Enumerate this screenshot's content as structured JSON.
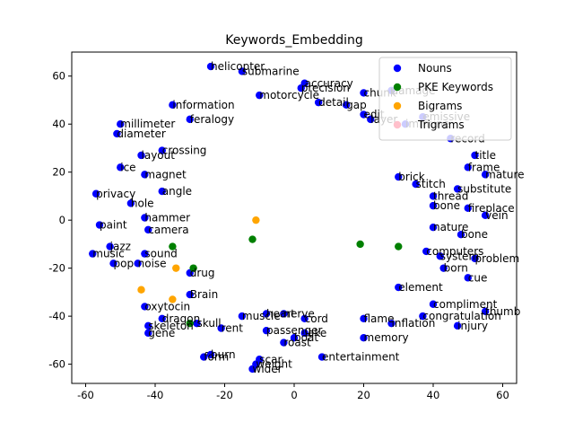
{
  "chart_data": {
    "type": "scatter",
    "title": "Keywords_Embedding",
    "xlabel": "",
    "ylabel": "",
    "xlim": [
      -64,
      64
    ],
    "ylim": [
      -68,
      70
    ],
    "xticks": [
      -60,
      -40,
      -20,
      0,
      20,
      40,
      60
    ],
    "yticks": [
      -60,
      -40,
      -20,
      0,
      20,
      40,
      60
    ],
    "grid": false,
    "legend_position": "top-right",
    "series": [
      {
        "name": "Nouns",
        "color": "#0000ff",
        "points": [
          {
            "x": -24,
            "y": 64,
            "label": "helicopter"
          },
          {
            "x": -15,
            "y": 62,
            "label": "submarine"
          },
          {
            "x": 3,
            "y": 57,
            "label": "accuracy"
          },
          {
            "x": 2,
            "y": 55,
            "label": "precision"
          },
          {
            "x": -10,
            "y": 52,
            "label": "motorcycle"
          },
          {
            "x": 20,
            "y": 53,
            "label": "chunk"
          },
          {
            "x": 28,
            "y": 54,
            "label": "damage"
          },
          {
            "x": -35,
            "y": 48,
            "label": "information"
          },
          {
            "x": 7,
            "y": 49,
            "label": "detail"
          },
          {
            "x": 15,
            "y": 48,
            "label": "gap"
          },
          {
            "x": 20,
            "y": 44,
            "label": "edit"
          },
          {
            "x": 22,
            "y": 42,
            "label": "layer"
          },
          {
            "x": -50,
            "y": 40,
            "label": "millimeter"
          },
          {
            "x": -51,
            "y": 36,
            "label": "diameter"
          },
          {
            "x": -30,
            "y": 42,
            "label": "feralogy"
          },
          {
            "x": 32,
            "y": 40,
            "label": "immune"
          },
          {
            "x": 37,
            "y": 43,
            "label": "emissive"
          },
          {
            "x": 45,
            "y": 34,
            "label": "record"
          },
          {
            "x": -38,
            "y": 29,
            "label": "crossing"
          },
          {
            "x": -44,
            "y": 27,
            "label": "layout"
          },
          {
            "x": 52,
            "y": 27,
            "label": "title"
          },
          {
            "x": -50,
            "y": 22,
            "label": "ice"
          },
          {
            "x": 50,
            "y": 22,
            "label": "frame"
          },
          {
            "x": 55,
            "y": 19,
            "label": "mature"
          },
          {
            "x": -43,
            "y": 19,
            "label": "magnet"
          },
          {
            "x": 30,
            "y": 18,
            "label": "brick"
          },
          {
            "x": 35,
            "y": 15,
            "label": "stitch"
          },
          {
            "x": 47,
            "y": 13,
            "label": "substitute"
          },
          {
            "x": -57,
            "y": 11,
            "label": "privacy"
          },
          {
            "x": 40,
            "y": 10,
            "label": "thread"
          },
          {
            "x": -38,
            "y": 12,
            "label": "angle"
          },
          {
            "x": -47,
            "y": 7,
            "label": "hole"
          },
          {
            "x": 40,
            "y": 6,
            "label": "bone"
          },
          {
            "x": 50,
            "y": 5,
            "label": "fireplace"
          },
          {
            "x": -56,
            "y": -2,
            "label": "paint"
          },
          {
            "x": -43,
            "y": 1,
            "label": "hammer"
          },
          {
            "x": -42,
            "y": -4,
            "label": "camera"
          },
          {
            "x": 40,
            "y": -3,
            "label": "nature"
          },
          {
            "x": 55,
            "y": 2,
            "label": "vein"
          },
          {
            "x": 48,
            "y": -6,
            "label": "bone"
          },
          {
            "x": -53,
            "y": -11,
            "label": "jazz"
          },
          {
            "x": -58,
            "y": -14,
            "label": "music"
          },
          {
            "x": -43,
            "y": -14,
            "label": "sound"
          },
          {
            "x": -52,
            "y": -18,
            "label": "pop"
          },
          {
            "x": -45,
            "y": -18,
            "label": "noise"
          },
          {
            "x": 38,
            "y": -13,
            "label": "computers"
          },
          {
            "x": 42,
            "y": -15,
            "label": "system"
          },
          {
            "x": 52,
            "y": -16,
            "label": "problem"
          },
          {
            "x": 43,
            "y": -20,
            "label": "born"
          },
          {
            "x": 50,
            "y": -24,
            "label": "cue"
          },
          {
            "x": -30,
            "y": -22,
            "label": "drug"
          },
          {
            "x": -30,
            "y": -31,
            "label": "Brain"
          },
          {
            "x": 30,
            "y": -28,
            "label": "element"
          },
          {
            "x": 40,
            "y": -35,
            "label": "compliment"
          },
          {
            "x": 37,
            "y": -40,
            "label": "congratulation"
          },
          {
            "x": 55,
            "y": -38,
            "label": "thumb"
          },
          {
            "x": 47,
            "y": -44,
            "label": "injury"
          },
          {
            "x": -43,
            "y": -36,
            "label": "oxytocin"
          },
          {
            "x": -38,
            "y": -41,
            "label": "dragon"
          },
          {
            "x": -42,
            "y": -44,
            "label": "skeleton"
          },
          {
            "x": -42,
            "y": -47,
            "label": "gene"
          },
          {
            "x": -28,
            "y": -43,
            "label": "skull"
          },
          {
            "x": -21,
            "y": -45,
            "label": "rent"
          },
          {
            "x": -15,
            "y": -40,
            "label": "muscle"
          },
          {
            "x": -8,
            "y": -39,
            "label": "heart"
          },
          {
            "x": -3,
            "y": -39,
            "label": "nerve"
          },
          {
            "x": 3,
            "y": -41,
            "label": "cord"
          },
          {
            "x": 20,
            "y": -41,
            "label": "flame"
          },
          {
            "x": 28,
            "y": -43,
            "label": "inflation"
          },
          {
            "x": -8,
            "y": -46,
            "label": "passenger"
          },
          {
            "x": 0,
            "y": -49,
            "label": "boat"
          },
          {
            "x": 3,
            "y": -47,
            "label": "lake"
          },
          {
            "x": -3,
            "y": -51,
            "label": "roast"
          },
          {
            "x": 20,
            "y": -49,
            "label": "memory"
          },
          {
            "x": -24,
            "y": -56,
            "label": "burn"
          },
          {
            "x": -26,
            "y": -57,
            "label": "form"
          },
          {
            "x": -10,
            "y": -58,
            "label": "scar"
          },
          {
            "x": 8,
            "y": -57,
            "label": "entertainment"
          },
          {
            "x": -11,
            "y": -60,
            "label": "weight"
          },
          {
            "x": -12,
            "y": -62,
            "label": "wider"
          }
        ]
      },
      {
        "name": "PKE Keywords",
        "color": "#008000",
        "points": [
          {
            "x": -35,
            "y": -11
          },
          {
            "x": -29,
            "y": -20
          },
          {
            "x": -30,
            "y": -43
          },
          {
            "x": -12,
            "y": -8
          },
          {
            "x": 19,
            "y": -10
          },
          {
            "x": 30,
            "y": -11
          }
        ]
      },
      {
        "name": "Bigrams",
        "color": "#ffa500",
        "points": [
          {
            "x": -11,
            "y": 0
          },
          {
            "x": -34,
            "y": -20
          },
          {
            "x": -44,
            "y": -29
          },
          {
            "x": -35,
            "y": -33
          }
        ]
      },
      {
        "name": "Trigrams",
        "color": "#ffc0cb",
        "points": []
      }
    ]
  }
}
